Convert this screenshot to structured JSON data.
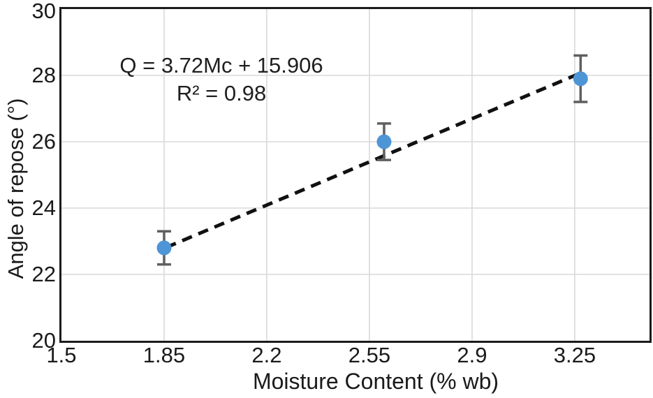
{
  "chart_data": {
    "type": "scatter",
    "title": "",
    "xlabel": "Moisture Content (% wb)",
    "ylabel": "Angle of repose (°)",
    "xlim": [
      1.5,
      3.505
    ],
    "ylim": [
      20,
      30
    ],
    "xticks": [
      "1.5",
      "1.85",
      "2.2",
      "2.55",
      "2.9",
      "3.25"
    ],
    "yticks": [
      "20",
      "22",
      "24",
      "26",
      "28",
      "30"
    ],
    "grid": true,
    "legend": "none",
    "annotation": {
      "equation": "Q = 3.72Mc + 15.906",
      "r_squared": "R² = 0.98"
    },
    "series": [
      {
        "name": "Angle of repose",
        "marker": "circle",
        "points": [
          {
            "x": 1.85,
            "y": 22.8,
            "err": 0.5
          },
          {
            "x": 2.6,
            "y": 26.0,
            "err": 0.55
          },
          {
            "x": 3.27,
            "y": 27.9,
            "err": 0.7
          }
        ]
      }
    ],
    "trendline": {
      "type": "linear",
      "style": "dashed",
      "slope": 3.72,
      "intercept": 15.906,
      "x_range": [
        1.857,
        3.275
      ]
    },
    "colors": {
      "marker": "#4E95D6",
      "error_bar": "#5F5F5F",
      "trendline": "#111111",
      "grid": "#D9D9D9",
      "axis_border": "#1B1B1B",
      "text": "#1A1A1A"
    }
  }
}
